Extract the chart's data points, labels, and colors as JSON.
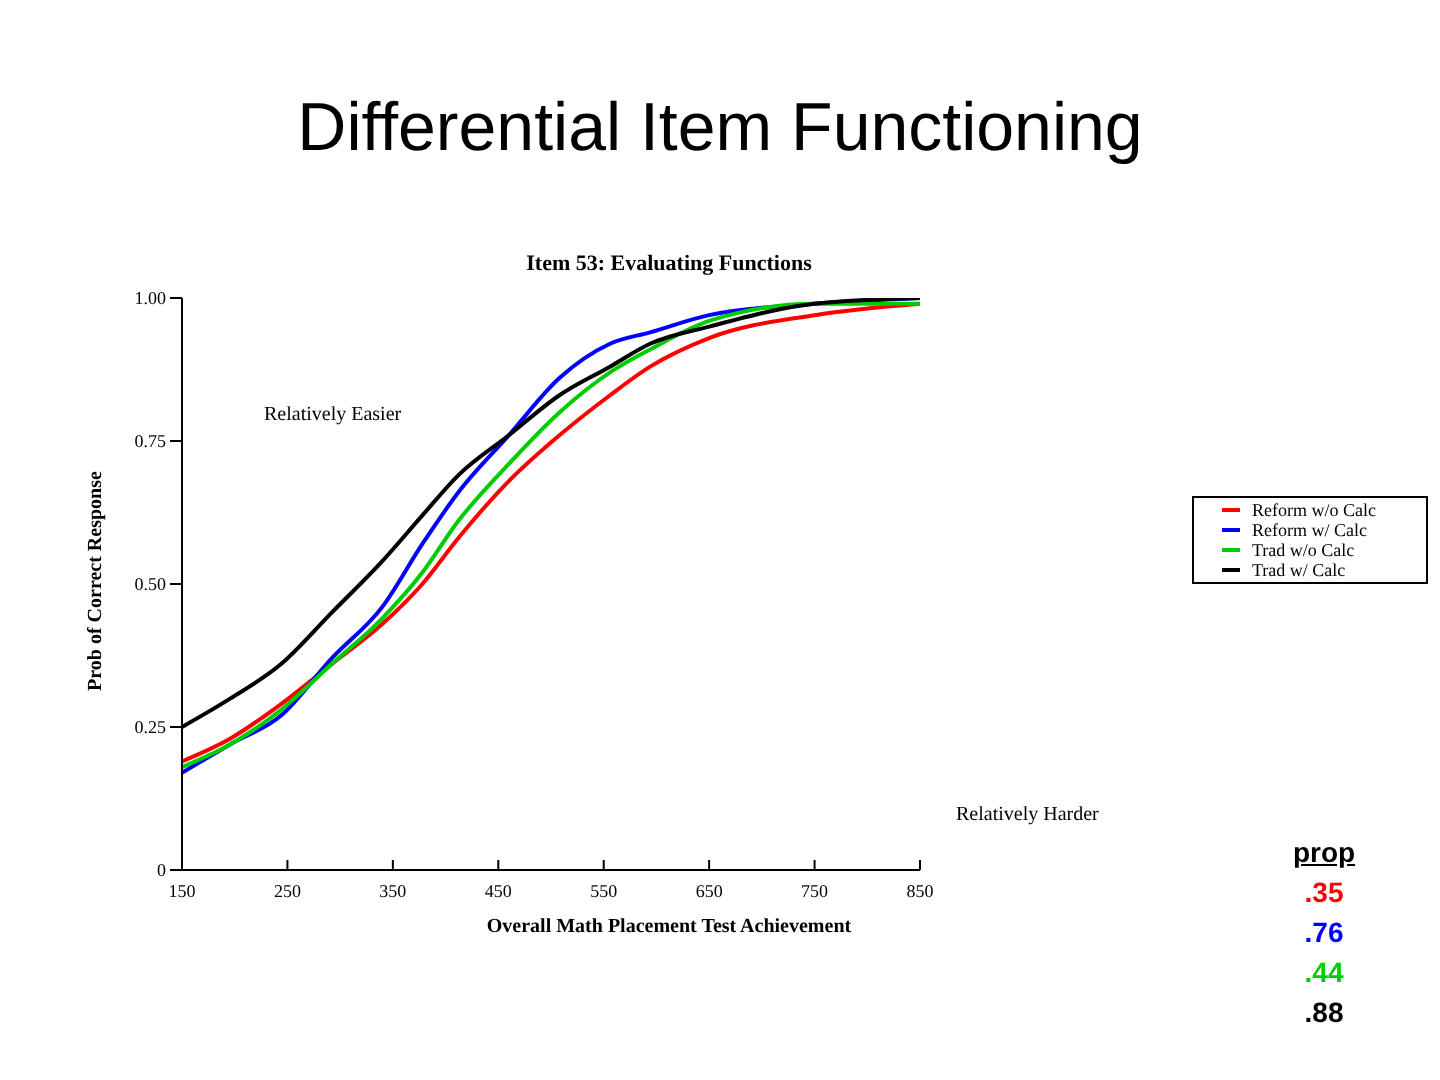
{
  "chart_data": {
    "type": "line",
    "title": "Differential Item Functioning",
    "subtitle": "Item 53: Evaluating Functions",
    "xlabel": "Overall Math Placement Test Achievement",
    "ylabel": "Prob of Correct Response",
    "x": [
      150,
      196,
      244,
      292,
      340,
      378,
      412,
      460,
      508,
      556,
      594,
      650,
      750,
      850
    ],
    "series": [
      {
        "name": "Reform w/o Calc",
        "color": "#ff0000",
        "values": [
          0.19,
          0.23,
          0.29,
          0.36,
          0.43,
          0.5,
          0.58,
          0.68,
          0.76,
          0.83,
          0.88,
          0.93,
          0.97,
          0.99
        ]
      },
      {
        "name": "Reform w/ Calc",
        "color": "#0000ff",
        "values": [
          0.17,
          0.22,
          0.27,
          0.37,
          0.46,
          0.57,
          0.66,
          0.76,
          0.86,
          0.92,
          0.94,
          0.97,
          0.99,
          1.0
        ]
      },
      {
        "name": "Trad w/o Calc",
        "color": "#00cc00",
        "values": [
          0.18,
          0.22,
          0.28,
          0.36,
          0.44,
          0.52,
          0.61,
          0.71,
          0.8,
          0.87,
          0.91,
          0.96,
          0.99,
          0.99
        ]
      },
      {
        "name": "Trad w/ Calc",
        "color": "#000000",
        "values": [
          0.25,
          0.3,
          0.36,
          0.45,
          0.54,
          0.62,
          0.69,
          0.76,
          0.83,
          0.88,
          0.92,
          0.95,
          0.99,
          1.0
        ]
      }
    ],
    "xlim": [
      150,
      850
    ],
    "xticks": [
      150,
      250,
      350,
      450,
      550,
      650,
      750,
      850
    ],
    "ylim": [
      0,
      1
    ],
    "yticks": [
      0,
      {
        "value": 0.25,
        "label": "0.25"
      },
      {
        "value": 0.5,
        "label": "0.50"
      },
      {
        "value": 0.75,
        "label": "0.75"
      },
      {
        "value": 1,
        "label": "1.00"
      }
    ],
    "annotations": [
      "Relatively Easier",
      "Relatively Harder",
      "prop",
      ".35",
      ".76",
      ".44",
      ".88"
    ],
    "legend": "right",
    "marker": "none",
    "line_style": "solid"
  }
}
